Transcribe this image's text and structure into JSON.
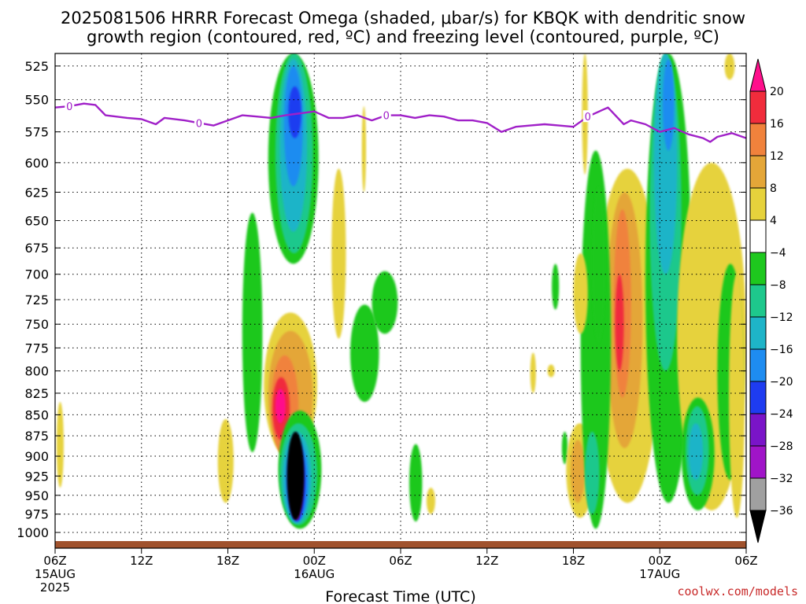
{
  "title_line1": "2025081506 HRRR Forecast Omega (shaded, μbar/s) for KBQK with dendritic snow",
  "title_line2": "growth region (contoured, red, ºC) and freezing level (contoured, purple, ºC)",
  "credit": "coolwx.com/models",
  "chart_data": {
    "type": "heatmap",
    "xlabel": "Forecast Time (UTC)",
    "ylabel": "",
    "x_ticks": [
      {
        "h": 0,
        "label": "06Z",
        "sub": "15AUG",
        "sub2": "2025"
      },
      {
        "h": 6,
        "label": "12Z",
        "sub": "",
        "sub2": ""
      },
      {
        "h": 12,
        "label": "18Z",
        "sub": "",
        "sub2": ""
      },
      {
        "h": 18,
        "label": "00Z",
        "sub": "16AUG",
        "sub2": ""
      },
      {
        "h": 24,
        "label": "06Z",
        "sub": "",
        "sub2": ""
      },
      {
        "h": 30,
        "label": "12Z",
        "sub": "",
        "sub2": ""
      },
      {
        "h": 36,
        "label": "18Z",
        "sub": "",
        "sub2": ""
      },
      {
        "h": 42,
        "label": "00Z",
        "sub": "17AUG",
        "sub2": ""
      },
      {
        "h": 48,
        "label": "06Z",
        "sub": "",
        "sub2": ""
      }
    ],
    "xlim": [
      0,
      48
    ],
    "y_ticks": [
      525,
      550,
      575,
      600,
      625,
      650,
      675,
      700,
      725,
      750,
      775,
      800,
      825,
      850,
      875,
      900,
      925,
      950,
      975,
      1000
    ],
    "ylim_hpa": [
      516,
      1012
    ],
    "y_scale": "log",
    "grid": true,
    "colorbar": {
      "labels": [
        "20",
        "16",
        "12",
        "8",
        "4",
        "−4",
        "−8",
        "−12",
        "−16",
        "−20",
        "−24",
        "−28",
        "−32",
        "−36"
      ],
      "bins": [
        {
          "value": 20,
          "color": "#ff0f8c"
        },
        {
          "value": 18,
          "color": "#f02c3c"
        },
        {
          "value": 14,
          "color": "#f0823c"
        },
        {
          "value": 10,
          "color": "#e4a638"
        },
        {
          "value": 6,
          "color": "#e6d23c"
        },
        {
          "value": 0,
          "color": "#ffffff"
        },
        {
          "value": -6,
          "color": "#1ec81e"
        },
        {
          "value": -10,
          "color": "#1ec88c"
        },
        {
          "value": -14,
          "color": "#1eb4c8"
        },
        {
          "value": -18,
          "color": "#1e8cf0"
        },
        {
          "value": -22,
          "color": "#1e3cf0"
        },
        {
          "value": -26,
          "color": "#7a14c8"
        },
        {
          "value": -30,
          "color": "#a014c8"
        },
        {
          "value": -34,
          "color": "#a0a0a0"
        },
        {
          "value": -38,
          "color": "#000000"
        }
      ]
    },
    "freezing_level": {
      "color": "#a020c8",
      "label": "0",
      "label_at_h": [
        1,
        10,
        23,
        37
      ],
      "points": [
        [
          0,
          556
        ],
        [
          1,
          555
        ],
        [
          2,
          553
        ],
        [
          2.8,
          554
        ],
        [
          3.5,
          562
        ],
        [
          5,
          564
        ],
        [
          6,
          565
        ],
        [
          7,
          569
        ],
        [
          7.6,
          564
        ],
        [
          9,
          566
        ],
        [
          11,
          570
        ],
        [
          12,
          566
        ],
        [
          13,
          562
        ],
        [
          14,
          563
        ],
        [
          15,
          564
        ],
        [
          16,
          562
        ],
        [
          18,
          559
        ],
        [
          19,
          564
        ],
        [
          20,
          564
        ],
        [
          21,
          562
        ],
        [
          22,
          566
        ],
        [
          23,
          562
        ],
        [
          24,
          562
        ],
        [
          25,
          564
        ],
        [
          26,
          562
        ],
        [
          27,
          563
        ],
        [
          28,
          566
        ],
        [
          29,
          566
        ],
        [
          30,
          568
        ],
        [
          31,
          575
        ],
        [
          32,
          571
        ],
        [
          33,
          570
        ],
        [
          34,
          569
        ],
        [
          35,
          570
        ],
        [
          36,
          571
        ],
        [
          37,
          563
        ],
        [
          38.4,
          556
        ],
        [
          39.5,
          569
        ],
        [
          40,
          566
        ],
        [
          41,
          569
        ],
        [
          42,
          575
        ],
        [
          43,
          572
        ],
        [
          44,
          577
        ],
        [
          45,
          580
        ],
        [
          45.5,
          583
        ],
        [
          46,
          579
        ],
        [
          47,
          576
        ],
        [
          48,
          580
        ]
      ]
    },
    "omega_regions": [
      {
        "x": [
          14.5,
          18.2
        ],
        "p": [
          738,
          903
        ],
        "v": 6
      },
      {
        "x": [
          14.8,
          17.9
        ],
        "p": [
          757,
          903
        ],
        "v": 10
      },
      {
        "x": [
          15.0,
          16.9
        ],
        "p": [
          783,
          900
        ],
        "v": 14
      },
      {
        "x": [
          15.1,
          16.3
        ],
        "p": [
          807,
          880
        ],
        "v": 18
      },
      {
        "x": [
          15.3,
          16.0
        ],
        "p": [
          820,
          860
        ],
        "v": 20
      },
      {
        "x": [
          13.0,
          14.4
        ],
        "p": [
          643,
          895
        ],
        "v": -6
      },
      {
        "x": [
          15.5,
          18.5
        ],
        "p": [
          845,
          995
        ],
        "v": -6
      },
      {
        "x": [
          15.6,
          18.2
        ],
        "p": [
          860,
          990
        ],
        "v": -10
      },
      {
        "x": [
          15.8,
          17.8
        ],
        "p": [
          870,
          988
        ],
        "v": -14
      },
      {
        "x": [
          16.0,
          17.6
        ],
        "p": [
          880,
          985
        ],
        "v": -18
      },
      {
        "x": [
          16.2,
          17.4
        ],
        "p": [
          885,
          985
        ],
        "v": -22
      },
      {
        "x": [
          16.3,
          17.2
        ],
        "p": [
          885,
          983
        ],
        "v": -26
      },
      {
        "x": [
          16.5,
          17.1
        ],
        "p": [
          890,
          982
        ],
        "v": -30
      },
      {
        "x": [
          16.6,
          16.9
        ],
        "p": [
          895,
          980
        ],
        "v": -34
      },
      {
        "x": [
          16.1,
          17.3
        ],
        "p": [
          870,
          983
        ],
        "v": -38
      },
      {
        "x": [
          14.8,
          18.3
        ],
        "p": [
          516,
          690
        ],
        "v": -6
      },
      {
        "x": [
          15.3,
          17.9
        ],
        "p": [
          516,
          680
        ],
        "v": -10
      },
      {
        "x": [
          15.6,
          17.5
        ],
        "p": [
          520,
          660
        ],
        "v": -14
      },
      {
        "x": [
          15.9,
          17.2
        ],
        "p": [
          525,
          620
        ],
        "v": -18
      },
      {
        "x": [
          16.2,
          17.1
        ],
        "p": [
          540,
          580
        ],
        "v": -22
      },
      {
        "x": [
          20.5,
          22.5
        ],
        "p": [
          730,
          835
        ],
        "v": -6
      },
      {
        "x": [
          22.0,
          23.8
        ],
        "p": [
          697,
          760
        ],
        "v": -6
      },
      {
        "x": [
          24.6,
          25.5
        ],
        "p": [
          885,
          985
        ],
        "v": -6
      },
      {
        "x": [
          11.3,
          12.4
        ],
        "p": [
          855,
          960
        ],
        "v": 6
      },
      {
        "x": [
          0.1,
          0.6
        ],
        "p": [
          835,
          940
        ],
        "v": 6
      },
      {
        "x": [
          19.2,
          20.2
        ],
        "p": [
          605,
          765
        ],
        "v": 6
      },
      {
        "x": [
          21.3,
          21.6
        ],
        "p": [
          555,
          625
        ],
        "v": 6
      },
      {
        "x": [
          25.8,
          26.4
        ],
        "p": [
          940,
          975
        ],
        "v": 6
      },
      {
        "x": [
          33.0,
          33.4
        ],
        "p": [
          780,
          825
        ],
        "v": 6
      },
      {
        "x": [
          34.2,
          34.7
        ],
        "p": [
          793,
          807
        ],
        "v": 6
      },
      {
        "x": [
          34.5,
          35.0
        ],
        "p": [
          690,
          735
        ],
        "v": -6
      },
      {
        "x": [
          35.2,
          35.6
        ],
        "p": [
          870,
          910
        ],
        "v": -6
      },
      {
        "x": [
          37.5,
          42.0
        ],
        "p": [
          605,
          960
        ],
        "v": 6
      },
      {
        "x": [
          38.3,
          40.8
        ],
        "p": [
          625,
          890
        ],
        "v": 10
      },
      {
        "x": [
          38.8,
          40.0
        ],
        "p": [
          640,
          830
        ],
        "v": 14
      },
      {
        "x": [
          38.9,
          39.5
        ],
        "p": [
          700,
          800
        ],
        "v": 18
      },
      {
        "x": [
          35.5,
          37.4
        ],
        "p": [
          860,
          980
        ],
        "v": 6
      },
      {
        "x": [
          35.8,
          36.8
        ],
        "p": [
          880,
          960
        ],
        "v": 10
      },
      {
        "x": [
          36.5,
          38.6
        ],
        "p": [
          590,
          995
        ],
        "v": -6
      },
      {
        "x": [
          36.8,
          37.8
        ],
        "p": [
          870,
          975
        ],
        "v": -10
      },
      {
        "x": [
          37.3,
          38.2
        ],
        "p": [
          620,
          770
        ],
        "v": -6
      },
      {
        "x": [
          36.0,
          37.0
        ],
        "p": [
          680,
          760
        ],
        "v": 6
      },
      {
        "x": [
          41.0,
          44.2
        ],
        "p": [
          516,
          960
        ],
        "v": -6
      },
      {
        "x": [
          41.3,
          43.5
        ],
        "p": [
          516,
          800
        ],
        "v": -10
      },
      {
        "x": [
          41.6,
          43.2
        ],
        "p": [
          516,
          700
        ],
        "v": -14
      },
      {
        "x": [
          42.2,
          43.0
        ],
        "p": [
          520,
          590
        ],
        "v": -18
      },
      {
        "x": [
          43.2,
          48.0
        ],
        "p": [
          600,
          970
        ],
        "v": 6
      },
      {
        "x": [
          43.5,
          45.8
        ],
        "p": [
          830,
          970
        ],
        "v": -6
      },
      {
        "x": [
          43.8,
          45.4
        ],
        "p": [
          840,
          950
        ],
        "v": -10
      },
      {
        "x": [
          44.0,
          45.0
        ],
        "p": [
          860,
          930
        ],
        "v": -14
      },
      {
        "x": [
          46.0,
          47.8
        ],
        "p": [
          690,
          930
        ],
        "v": -6
      },
      {
        "x": [
          46.8,
          47.9
        ],
        "p": [
          700,
          980
        ],
        "v": 6
      },
      {
        "x": [
          36.6,
          37.0
        ],
        "p": [
          516,
          610
        ],
        "v": 6
      },
      {
        "x": [
          46.5,
          47.2
        ],
        "p": [
          516,
          535
        ],
        "v": 6
      }
    ]
  }
}
